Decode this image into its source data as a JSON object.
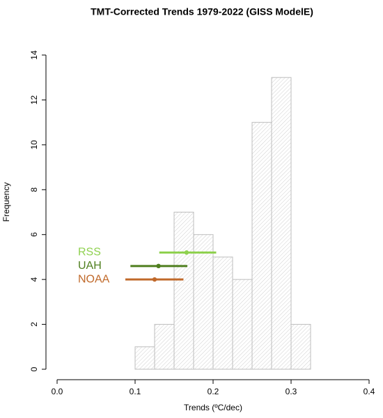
{
  "chart_data": {
    "type": "histogram",
    "title": "TMT-Corrected Trends 1979-2022 (GISS ModelE)",
    "xlabel": "Trends (ºC/dec)",
    "ylabel": "Frequency",
    "bins": [
      0.1,
      0.125,
      0.15,
      0.175,
      0.2,
      0.225,
      0.25,
      0.275,
      0.3,
      0.325
    ],
    "counts": [
      1,
      2,
      7,
      6,
      5,
      4,
      11,
      13,
      2
    ],
    "color": "#bdbdbd",
    "xlim": [
      0,
      0.4
    ],
    "ylim": [
      0,
      14
    ],
    "xticks": [
      {
        "value": 0,
        "label": "0.0"
      },
      0.1,
      0.2,
      0.3,
      0.4
    ],
    "yticks": [
      0,
      2,
      4,
      6,
      8,
      10,
      12,
      14
    ],
    "observations": [
      {
        "name": "RSS",
        "color": "#8fd14f",
        "value": 0.166,
        "low": 0.131,
        "high": 0.204,
        "y": 5.2
      },
      {
        "name": "UAH",
        "color": "#4f7f1f",
        "value": 0.13,
        "low": 0.094,
        "high": 0.167,
        "y": 4.6
      },
      {
        "name": "NOAA",
        "color": "#c0692a",
        "value": 0.125,
        "low": 0.0875,
        "high": 0.162,
        "y": 4.0
      }
    ]
  }
}
